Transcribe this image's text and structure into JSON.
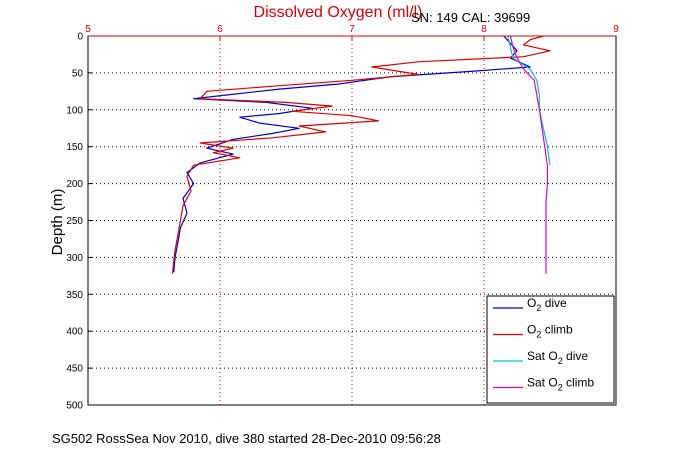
{
  "chart_data": {
    "type": "line",
    "title": "Dissolved Oxygen (ml/l)",
    "serial_label": "SN: 149  CAL: 39699",
    "ylabel": "Depth (m)",
    "footer": "SG502 RossSea Nov 2010, dive 380 started 28-Dec-2010 09:56:28",
    "xlim": [
      5,
      9
    ],
    "ylim": [
      0,
      500
    ],
    "y_reversed": true,
    "x_axis_position": "top",
    "x_ticks": [
      "5",
      "6",
      "7",
      "8",
      "9"
    ],
    "y_ticks": [
      "0",
      "50",
      "100",
      "150",
      "200",
      "250",
      "300",
      "350",
      "400",
      "450",
      "500"
    ],
    "grid": true,
    "x_grid_color": "#e00000",
    "y_grid_color": "#000000",
    "legend_position": "bottom-right",
    "series": [
      {
        "name": "O2 dive",
        "legend_main": "O",
        "legend_sub": "2",
        "legend_rest": " dive",
        "color": "#0000cc",
        "points": [
          [
            8.15,
            0
          ],
          [
            8.2,
            10
          ],
          [
            8.25,
            20
          ],
          [
            8.2,
            30
          ],
          [
            8.35,
            42
          ],
          [
            7.9,
            48
          ],
          [
            7.3,
            55
          ],
          [
            6.9,
            65
          ],
          [
            6.45,
            72
          ],
          [
            6.05,
            80
          ],
          [
            5.8,
            85
          ],
          [
            6.35,
            90
          ],
          [
            6.7,
            98
          ],
          [
            6.45,
            105
          ],
          [
            6.15,
            110
          ],
          [
            6.3,
            118
          ],
          [
            6.6,
            125
          ],
          [
            6.4,
            132
          ],
          [
            6.1,
            140
          ],
          [
            5.9,
            152
          ],
          [
            6.1,
            160
          ],
          [
            5.85,
            172
          ],
          [
            5.75,
            185
          ],
          [
            5.8,
            200
          ],
          [
            5.72,
            220
          ],
          [
            5.75,
            240
          ],
          [
            5.7,
            260
          ],
          [
            5.68,
            280
          ],
          [
            5.66,
            300
          ],
          [
            5.65,
            320
          ]
        ]
      },
      {
        "name": "O2 climb",
        "legend_main": "O",
        "legend_sub": "2",
        "legend_rest": " climb",
        "color": "#e00000",
        "points": [
          [
            8.45,
            0
          ],
          [
            8.35,
            5
          ],
          [
            8.3,
            12
          ],
          [
            8.5,
            20
          ],
          [
            8.3,
            28
          ],
          [
            7.5,
            35
          ],
          [
            7.15,
            42
          ],
          [
            7.5,
            52
          ],
          [
            7.0,
            60
          ],
          [
            6.4,
            68
          ],
          [
            5.9,
            75
          ],
          [
            5.85,
            85
          ],
          [
            6.5,
            90
          ],
          [
            6.85,
            95
          ],
          [
            6.55,
            102
          ],
          [
            7.0,
            108
          ],
          [
            7.2,
            115
          ],
          [
            6.6,
            122
          ],
          [
            6.8,
            130
          ],
          [
            6.4,
            138
          ],
          [
            5.85,
            145
          ],
          [
            6.1,
            152
          ],
          [
            5.95,
            158
          ],
          [
            6.15,
            165
          ],
          [
            5.8,
            175
          ],
          [
            5.75,
            190
          ],
          [
            5.78,
            210
          ],
          [
            5.72,
            230
          ],
          [
            5.7,
            250
          ],
          [
            5.68,
            270
          ],
          [
            5.66,
            290
          ],
          [
            5.65,
            305
          ],
          [
            5.64,
            322
          ]
        ]
      },
      {
        "name": "Sat O2 dive",
        "legend_main": "Sat O",
        "legend_sub": "2",
        "legend_rest": " dive",
        "color": "#00c8c8",
        "points": [
          [
            8.18,
            0
          ],
          [
            8.2,
            15
          ],
          [
            8.22,
            30
          ],
          [
            8.35,
            45
          ],
          [
            8.4,
            60
          ],
          [
            8.42,
            80
          ],
          [
            8.42,
            100
          ],
          [
            8.45,
            125
          ],
          [
            8.48,
            150
          ],
          [
            8.5,
            175
          ]
        ]
      },
      {
        "name": "Sat O2 climb",
        "legend_main": "Sat O",
        "legend_sub": "2",
        "legend_rest": " climb",
        "color": "#dd00dd",
        "points": [
          [
            8.2,
            0
          ],
          [
            8.22,
            15
          ],
          [
            8.25,
            30
          ],
          [
            8.3,
            45
          ],
          [
            8.38,
            60
          ],
          [
            8.4,
            80
          ],
          [
            8.42,
            100
          ],
          [
            8.44,
            125
          ],
          [
            8.46,
            150
          ],
          [
            8.48,
            175
          ],
          [
            8.48,
            200
          ],
          [
            8.47,
            225
          ],
          [
            8.47,
            250
          ],
          [
            8.47,
            275
          ],
          [
            8.47,
            300
          ],
          [
            8.47,
            322
          ]
        ]
      }
    ]
  }
}
